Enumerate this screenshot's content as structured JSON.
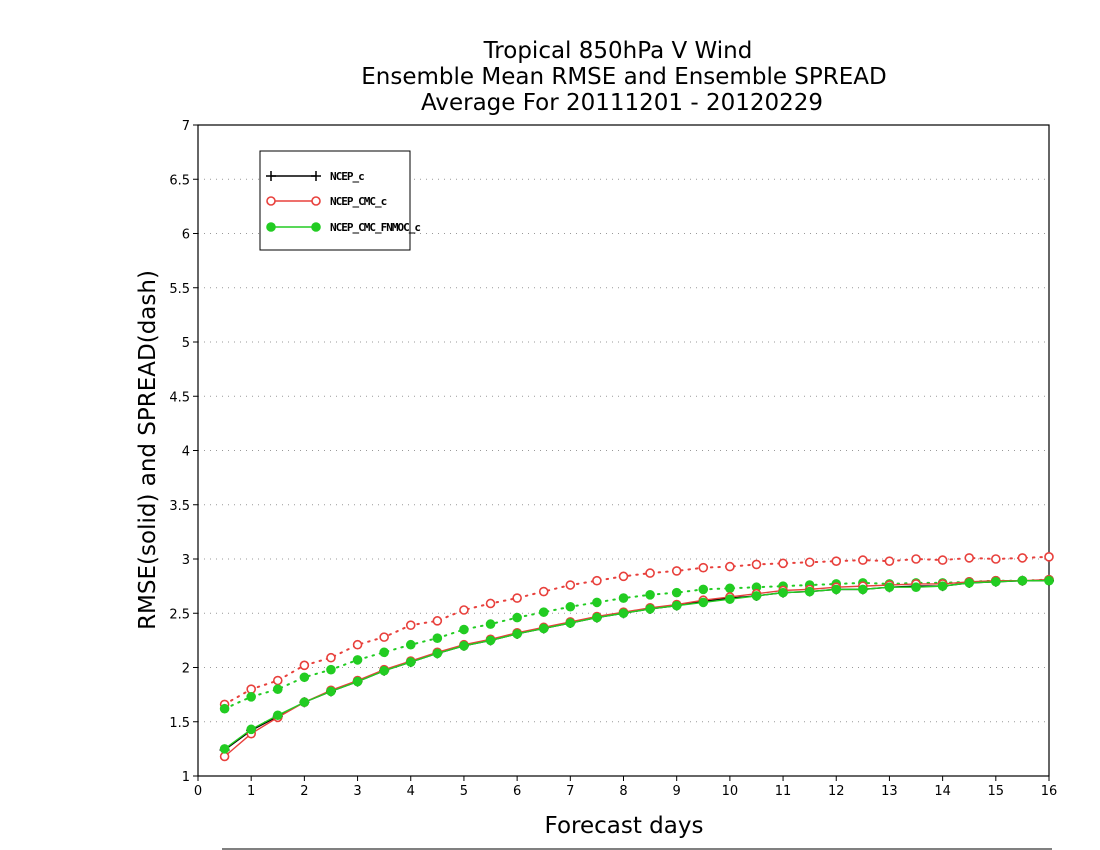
{
  "chart_data": {
    "type": "line",
    "title_lines": [
      "Tropical 850hPa V Wind",
      "Ensemble Mean RMSE and Ensemble SPREAD",
      "Average For 20111201 - 20120229"
    ],
    "xlabel": "Forecast days",
    "ylabel": "RMSE(solid) and SPREAD(dash)",
    "xlim": [
      0,
      16
    ],
    "ylim": [
      1,
      7
    ],
    "xticks": [
      "0",
      "1",
      "2",
      "3",
      "4",
      "5",
      "6",
      "7",
      "8",
      "9",
      "10",
      "11",
      "12",
      "13",
      "14",
      "15",
      "16"
    ],
    "yticks": [
      "1",
      "1.5",
      "2",
      "2.5",
      "3",
      "3.5",
      "4",
      "4.5",
      "5",
      "5.5",
      "6",
      "6.5",
      "7"
    ],
    "grid": "horizontal dotted",
    "legend_position": "top-left",
    "x": [
      0.5,
      1,
      1.5,
      2,
      2.5,
      3,
      3.5,
      4,
      4.5,
      5,
      5.5,
      6,
      6.5,
      7,
      7.5,
      8,
      8.5,
      9,
      9.5,
      10,
      10.5,
      11,
      11.5,
      12,
      12.5,
      13,
      13.5,
      14,
      14.5,
      15,
      15.5,
      16
    ],
    "series": [
      {
        "name": "NCEP_c",
        "color": "#000000",
        "marker": "plus",
        "rmse": [
          1.24,
          1.42,
          1.55,
          1.68,
          1.78,
          1.87,
          1.97,
          2.05,
          2.13,
          2.2,
          2.25,
          2.31,
          2.36,
          2.41,
          2.46,
          2.5,
          2.54,
          2.57,
          2.61,
          2.64,
          2.66,
          2.69,
          2.7,
          2.72,
          2.72,
          2.74,
          2.75,
          2.75,
          2.78,
          2.79,
          2.8,
          2.8
        ],
        "spread": null
      },
      {
        "name": "NCEP_CMC_c",
        "color": "#e8403c",
        "marker": "open-circle",
        "rmse": [
          1.18,
          1.39,
          1.54,
          1.68,
          1.79,
          1.88,
          1.98,
          2.06,
          2.14,
          2.21,
          2.26,
          2.32,
          2.37,
          2.42,
          2.47,
          2.51,
          2.55,
          2.58,
          2.62,
          2.65,
          2.68,
          2.71,
          2.72,
          2.74,
          2.75,
          2.76,
          2.77,
          2.77,
          2.79,
          2.8,
          2.8,
          2.81
        ],
        "spread": [
          1.66,
          1.8,
          1.88,
          2.02,
          2.09,
          2.21,
          2.28,
          2.39,
          2.43,
          2.53,
          2.59,
          2.64,
          2.7,
          2.76,
          2.8,
          2.84,
          2.87,
          2.89,
          2.92,
          2.93,
          2.95,
          2.96,
          2.97,
          2.98,
          2.99,
          2.98,
          3.0,
          2.99,
          3.01,
          3.0,
          3.01,
          3.02
        ]
      },
      {
        "name": "NCEP_CMC_FNMOC_c",
        "color": "#22cc22",
        "marker": "filled-circle",
        "rmse": [
          1.25,
          1.43,
          1.56,
          1.68,
          1.78,
          1.87,
          1.97,
          2.05,
          2.13,
          2.2,
          2.25,
          2.31,
          2.36,
          2.41,
          2.46,
          2.5,
          2.54,
          2.57,
          2.6,
          2.63,
          2.66,
          2.69,
          2.7,
          2.72,
          2.72,
          2.74,
          2.74,
          2.75,
          2.78,
          2.79,
          2.8,
          2.8
        ],
        "spread": [
          1.62,
          1.73,
          1.8,
          1.91,
          1.98,
          2.07,
          2.14,
          2.21,
          2.27,
          2.35,
          2.4,
          2.46,
          2.51,
          2.56,
          2.6,
          2.64,
          2.67,
          2.69,
          2.72,
          2.73,
          2.74,
          2.75,
          2.76,
          2.77,
          2.78,
          2.77,
          2.78,
          2.78,
          2.79,
          2.8,
          2.8,
          2.81
        ]
      }
    ]
  }
}
